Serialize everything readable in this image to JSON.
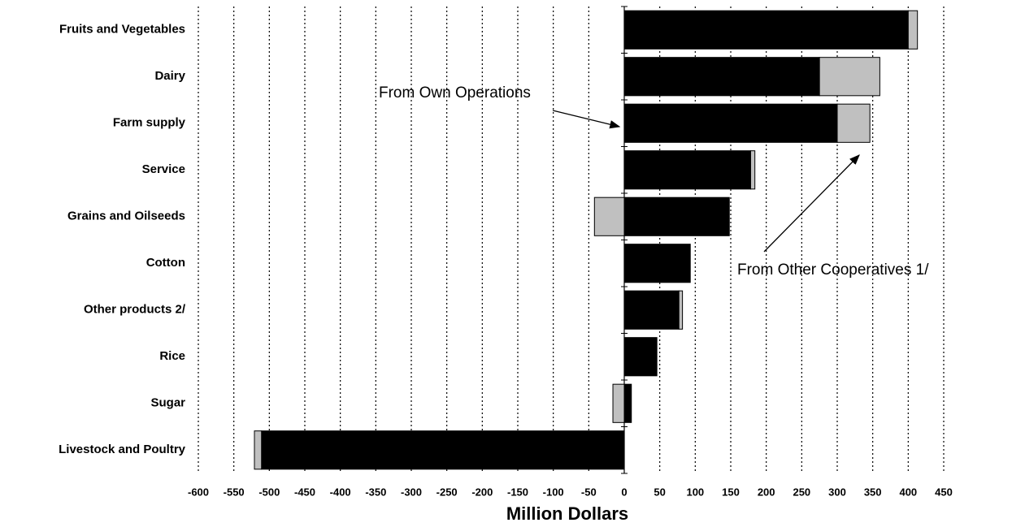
{
  "chart_data": {
    "type": "stacked-horizontal-bar",
    "categories": [
      "Fruits and Vegetables",
      "Dairy",
      "Farm supply",
      "Service",
      "Grains and Oilseeds",
      "Cotton",
      "Other products 2/",
      "Rice",
      "Sugar",
      "Livestock and Poultry"
    ],
    "series": [
      {
        "name": "From Own Operations",
        "color": "#000000",
        "values": [
          400,
          275,
          300,
          178,
          148,
          93,
          77,
          46,
          10,
          -511
        ]
      },
      {
        "name": "From Other Cooperatives 1/",
        "color": "#c0c0c0",
        "values": [
          13,
          85,
          46,
          6,
          -42,
          0,
          5,
          0,
          -16,
          -10
        ]
      }
    ],
    "xlabel": "Million Dollars",
    "xlim": [
      -600,
      450
    ],
    "xticks": [
      -600,
      -550,
      -500,
      -450,
      -400,
      -350,
      -300,
      -250,
      -200,
      -150,
      -100,
      -50,
      0,
      50,
      100,
      150,
      200,
      250,
      300,
      350,
      400,
      450
    ],
    "grid": true
  }
}
